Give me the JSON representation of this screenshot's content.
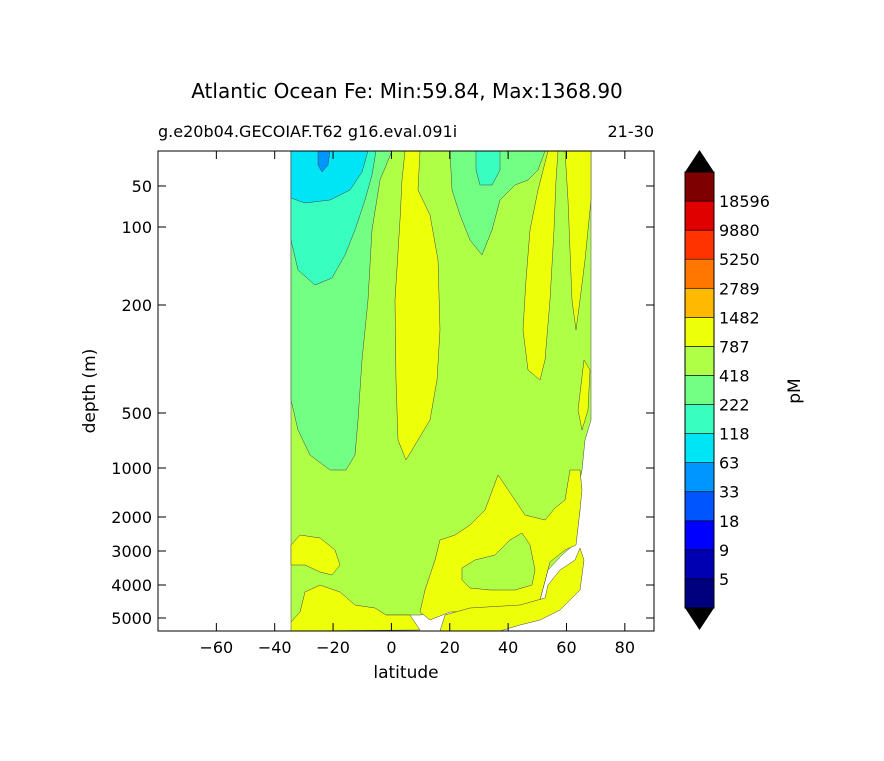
{
  "chart_data": {
    "type": "contourf",
    "title": "Atlantic Ocean Fe: Min:59.84, Max:1368.90",
    "subtitle_left": "g.e20b04.GECOIAF.T62 g16.eval.091i",
    "subtitle_right": "21-30",
    "xlabel": "latitude",
    "ylabel": "depth (m)",
    "xlim": [
      -80,
      90
    ],
    "x_ticks": [
      -60,
      -40,
      -20,
      0,
      20,
      40,
      60,
      80
    ],
    "x_tick_labels": [
      "−60",
      "−40",
      "−20",
      "0",
      "20",
      "40",
      "60",
      "80"
    ],
    "y_ticks": [
      50,
      100,
      200,
      500,
      1000,
      2000,
      3000,
      4000,
      5000
    ],
    "y_tick_labels": [
      "50",
      "100",
      "200",
      "500",
      "1000",
      "2000",
      "3000",
      "4000",
      "5000"
    ],
    "y_inverted": true,
    "y_scale": "stretched",
    "colorbar": {
      "label": "pM",
      "levels": [
        "5",
        "9",
        "18",
        "33",
        "63",
        "118",
        "222",
        "418",
        "787",
        "1482",
        "2789",
        "5250",
        "9880",
        "18596"
      ],
      "colors": [
        "#00007f",
        "#0000b3",
        "#0000ff",
        "#0055ff",
        "#0096ff",
        "#00e5f5",
        "#38ffbf",
        "#72ff84",
        "#b0ff47",
        "#eeff0a",
        "#ffb900",
        "#ff7600",
        "#ff3300",
        "#e00000",
        "#7f0000"
      ],
      "extend": "both"
    },
    "domain_lat_range": [
      -35,
      68
    ],
    "colors": {
      "c118": "#00e5f5",
      "c222": "#38ffbf",
      "c418": "#72ff84",
      "c787": "#b0ff47",
      "c1482": "#eeff0a",
      "c63": "#0096ff"
    }
  }
}
